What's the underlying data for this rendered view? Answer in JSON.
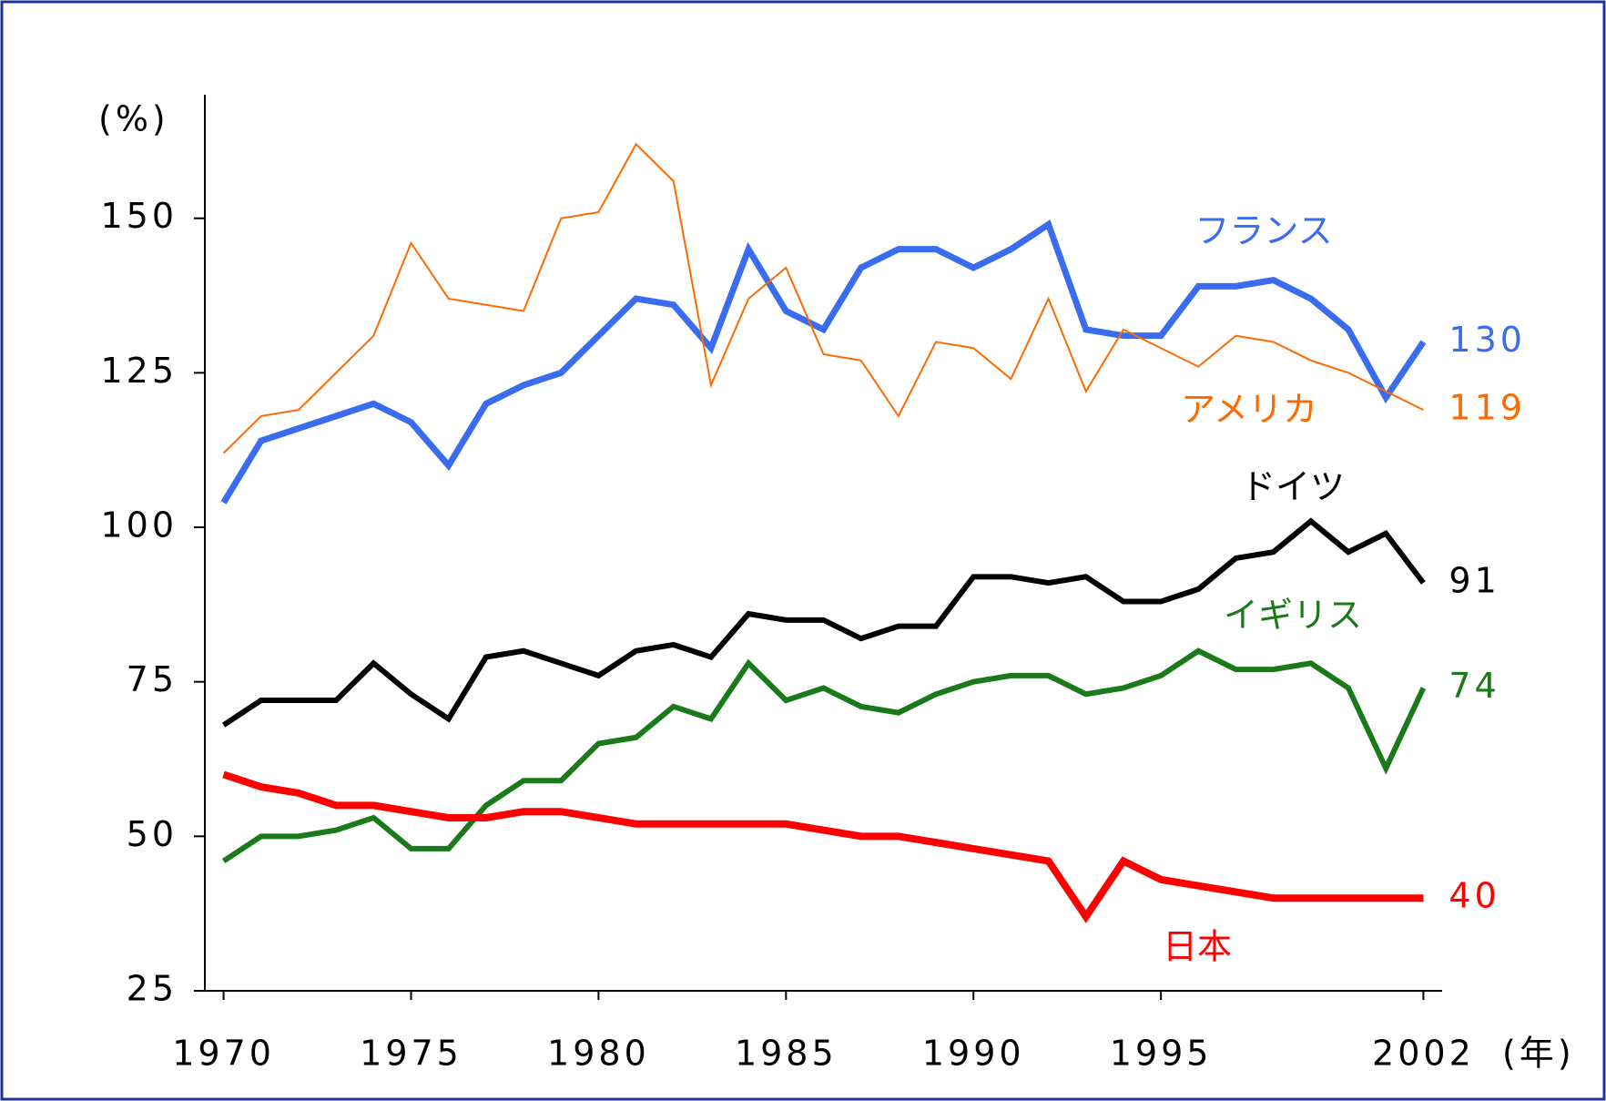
{
  "chart_data": {
    "type": "line",
    "y_unit": "(%)",
    "x_unit": "(年)",
    "x": [
      1970,
      1971,
      1972,
      1973,
      1974,
      1975,
      1976,
      1977,
      1978,
      1979,
      1980,
      1981,
      1982,
      1983,
      1984,
      1985,
      1986,
      1987,
      1988,
      1989,
      1990,
      1991,
      1992,
      1993,
      1994,
      1995,
      1996,
      1997,
      1998,
      1999,
      2000,
      2001,
      2002
    ],
    "xlim": [
      1969.5,
      2002.5
    ],
    "xticks": [
      1970,
      1975,
      1980,
      1985,
      1990,
      1995,
      2002
    ],
    "ylim": [
      25,
      170
    ],
    "yticks": [
      25,
      50,
      75,
      100,
      125,
      150
    ],
    "series": [
      {
        "name": "フランス",
        "color": "#3a6cf0",
        "values": [
          104,
          114,
          116,
          118,
          120,
          117,
          110,
          120,
          123,
          125,
          131,
          137,
          136,
          129,
          145,
          135,
          132,
          142,
          145,
          145,
          142,
          145,
          149,
          132,
          131,
          131,
          139,
          139,
          140,
          137,
          132,
          121,
          130
        ]
      },
      {
        "name": "アメリカ",
        "color": "#ff6a00",
        "values": [
          112,
          118,
          119,
          125,
          131,
          146,
          137,
          136,
          135,
          150,
          151,
          162,
          156,
          123,
          137,
          142,
          128,
          127,
          118,
          130,
          129,
          124,
          137,
          122,
          132,
          129,
          126,
          131,
          130,
          127,
          125,
          122,
          119
        ]
      },
      {
        "name": "ドイツ",
        "color": "#000000",
        "values": [
          68,
          72,
          72,
          72,
          78,
          73,
          69,
          79,
          80,
          78,
          76,
          80,
          81,
          79,
          86,
          85,
          85,
          82,
          84,
          84,
          92,
          92,
          91,
          92,
          88,
          88,
          90,
          95,
          96,
          101,
          96,
          99,
          91
        ]
      },
      {
        "name": "イギリス",
        "color": "#1a7a1a",
        "values": [
          46,
          50,
          50,
          51,
          53,
          48,
          48,
          55,
          59,
          59,
          65,
          66,
          71,
          69,
          78,
          72,
          74,
          71,
          70,
          73,
          75,
          76,
          76,
          73,
          74,
          76,
          80,
          77,
          77,
          78,
          74,
          61,
          74
        ]
      },
      {
        "name": "日本",
        "color": "#ff0000",
        "values": [
          60,
          58,
          57,
          55,
          55,
          54,
          53,
          53,
          54,
          54,
          53,
          52,
          52,
          52,
          52,
          52,
          51,
          50,
          50,
          49,
          48,
          47,
          46,
          37,
          46,
          43,
          42,
          41,
          40,
          40,
          40,
          40,
          40
        ]
      }
    ]
  }
}
